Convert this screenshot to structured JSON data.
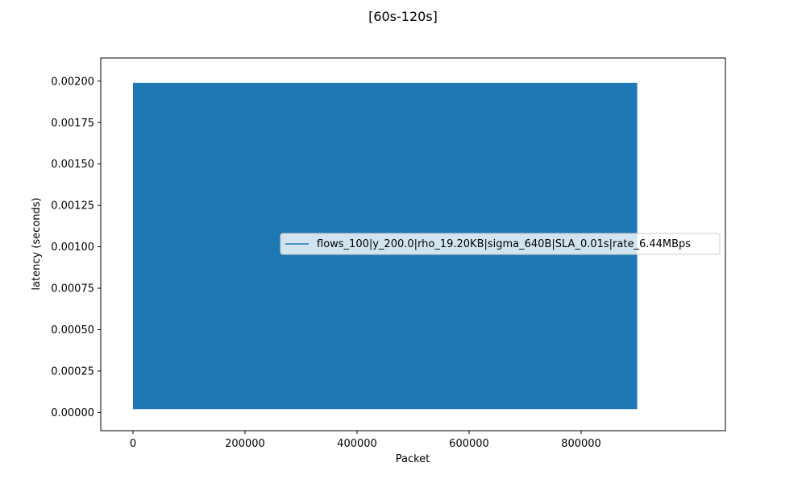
{
  "chart_data": {
    "type": "line",
    "title": "[60s-120s]",
    "xlabel": "Packet",
    "ylabel": "latency (seconds)",
    "xlim": [
      -57500,
      1057500
    ],
    "ylim": [
      -0.00011,
      0.00214
    ],
    "xticks": [
      0,
      200000,
      400000,
      600000,
      800000
    ],
    "xtick_labels": [
      "0",
      "200000",
      "400000",
      "600000",
      "800000"
    ],
    "yticks": [
      0,
      0.00025,
      0.0005,
      0.00075,
      0.001,
      0.00125,
      0.0015,
      0.00175,
      0.002
    ],
    "ytick_labels": [
      "0.00000",
      "0.00025",
      "0.00050",
      "0.00075",
      "0.00100",
      "0.00125",
      "0.00150",
      "0.00175",
      "0.00200"
    ],
    "grid": false,
    "legend_placement": "center-right",
    "series": [
      {
        "name": "flows_100|y_200.0|rho_19.20KB|sigma_640B|SLA_0.01s|rate_6.44MBps",
        "color": "#1f77b4",
        "x_range": [
          0,
          900000
        ],
        "y_band": [
          2e-05,
          0.00199
        ],
        "note_rendering": "dense oscillation filling band"
      }
    ]
  }
}
